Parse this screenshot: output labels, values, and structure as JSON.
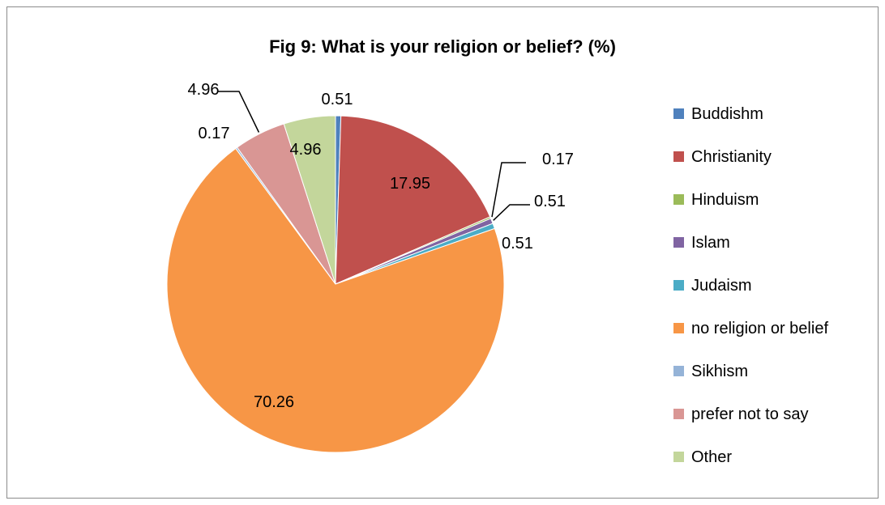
{
  "chart_data": {
    "type": "pie",
    "title": "Fig 9: What is your religion or belief? (%)",
    "legend_position": "right",
    "slices": [
      {
        "name": "Buddishm",
        "value": 0.51,
        "label": "0.51",
        "color": "#4F81BD"
      },
      {
        "name": "Christianity",
        "value": 17.95,
        "label": "17.95",
        "color": "#C0504D"
      },
      {
        "name": "Hinduism",
        "value": 0.17,
        "label": "0.17",
        "color": "#9BBB59"
      },
      {
        "name": "Islam",
        "value": 0.51,
        "label": "0.51",
        "color": "#8064A2"
      },
      {
        "name": "Judaism",
        "value": 0.51,
        "label": "0.51",
        "color": "#4BACC6"
      },
      {
        "name": "no religion or belief",
        "value": 70.26,
        "label": "70.26",
        "color": "#F79646"
      },
      {
        "name": "Sikhism",
        "value": 0.17,
        "label": "0.17",
        "color": "#95B3D7"
      },
      {
        "name": "prefer not to say",
        "value": 4.96,
        "label": "4.96",
        "color": "#D99694"
      },
      {
        "name": "Other",
        "value": 4.96,
        "label": "4.96",
        "color": "#C3D69B"
      }
    ]
  }
}
